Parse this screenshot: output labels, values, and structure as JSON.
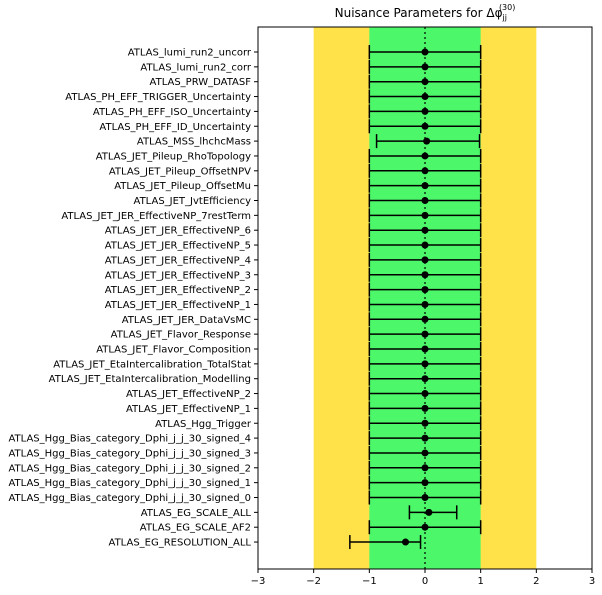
{
  "chart_data": {
    "type": "scatter",
    "title_prefix": "Nuisance Parameters for Δφ",
    "title_sub": "jj",
    "title_sup": "(30)",
    "xlim": [
      -3,
      3
    ],
    "xticks": [
      "−3",
      "−2",
      "−1",
      "0",
      "1",
      "2",
      "3"
    ],
    "grid": false,
    "bands": [
      {
        "range": [
          -2,
          2
        ],
        "color": "#ffe14a"
      },
      {
        "range": [
          -1,
          1
        ],
        "color": "#4cf76a"
      }
    ],
    "reference_line_x": 0,
    "categories": [
      "ATLAS_lumi_run2_uncorr",
      "ATLAS_lumi_run2_corr",
      "ATLAS_PRW_DATASF",
      "ATLAS_PH_EFF_TRIGGER_Uncertainty",
      "ATLAS_PH_EFF_ISO_Uncertainty",
      "ATLAS_PH_EFF_ID_Uncertainty",
      "ATLAS_MSS_lhchcMass",
      "ATLAS_JET_Pileup_RhoTopology",
      "ATLAS_JET_Pileup_OffsetNPV",
      "ATLAS_JET_Pileup_OffsetMu",
      "ATLAS_JET_JvtEfficiency",
      "ATLAS_JET_JER_EffectiveNP_7restTerm",
      "ATLAS_JET_JER_EffectiveNP_6",
      "ATLAS_JET_JER_EffectiveNP_5",
      "ATLAS_JET_JER_EffectiveNP_4",
      "ATLAS_JET_JER_EffectiveNP_3",
      "ATLAS_JET_JER_EffectiveNP_2",
      "ATLAS_JET_JER_EffectiveNP_1",
      "ATLAS_JET_JER_DataVsMC",
      "ATLAS_JET_Flavor_Response",
      "ATLAS_JET_Flavor_Composition",
      "ATLAS_JET_EtaIntercalibration_TotalStat",
      "ATLAS_JET_EtaIntercalibration_Modelling",
      "ATLAS_JET_EffectiveNP_2",
      "ATLAS_JET_EffectiveNP_1",
      "ATLAS_Hgg_Trigger",
      "ATLAS_Hgg_Bias_category_Dphi_j_j_30_signed_4",
      "ATLAS_Hgg_Bias_category_Dphi_j_j_30_signed_3",
      "ATLAS_Hgg_Bias_category_Dphi_j_j_30_signed_2",
      "ATLAS_Hgg_Bias_category_Dphi_j_j_30_signed_1",
      "ATLAS_Hgg_Bias_category_Dphi_j_j_30_signed_0",
      "ATLAS_EG_SCALE_ALL",
      "ATLAS_EG_SCALE_AF2",
      "ATLAS_EG_RESOLUTION_ALL"
    ],
    "values": [
      0.0,
      0.0,
      0.0,
      0.0,
      0.0,
      0.0,
      0.03,
      0.0,
      0.0,
      0.0,
      0.0,
      0.0,
      0.0,
      0.0,
      0.0,
      0.0,
      0.0,
      0.0,
      0.0,
      0.0,
      0.0,
      0.0,
      0.0,
      0.0,
      0.0,
      0.0,
      0.0,
      0.0,
      0.0,
      0.0,
      0.0,
      0.07,
      0.0,
      -0.35
    ],
    "err_low": [
      -1.0,
      -1.0,
      -1.0,
      -1.0,
      -1.0,
      -1.0,
      -0.9,
      -1.0,
      -1.0,
      -1.0,
      -1.0,
      -1.0,
      -1.0,
      -1.0,
      -1.0,
      -1.0,
      -1.0,
      -1.0,
      -1.0,
      -1.0,
      -1.0,
      -1.0,
      -1.0,
      -1.0,
      -1.0,
      -1.0,
      -1.0,
      -1.0,
      -1.0,
      -1.0,
      -1.0,
      -0.35,
      -1.0,
      -1.0
    ],
    "err_high": [
      1.0,
      1.0,
      1.0,
      1.0,
      1.0,
      1.0,
      0.95,
      1.0,
      1.0,
      1.0,
      1.0,
      1.0,
      1.0,
      1.0,
      1.0,
      1.0,
      1.0,
      1.0,
      1.0,
      1.0,
      1.0,
      1.0,
      1.0,
      1.0,
      1.0,
      1.0,
      1.0,
      1.0,
      1.0,
      1.0,
      1.0,
      0.5,
      1.0,
      0.27
    ],
    "marker_color": "#000000"
  }
}
